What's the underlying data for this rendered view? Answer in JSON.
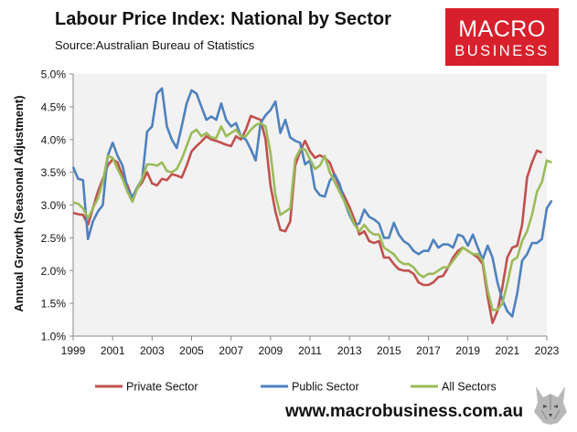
{
  "header": {
    "title": "Labour Price Index: National by Sector",
    "source": "Source:Australian Bureau of Statistics"
  },
  "logo": {
    "line1": "MACRO",
    "line2": "BUSINESS",
    "color": "#d7202b"
  },
  "footer": {
    "website": "www.macrobusiness.com.au",
    "mascot": "wolf-icon"
  },
  "chart_data": {
    "type": "line",
    "title": "Labour Price Index: National by Sector",
    "ylabel": "Annual Growth (Seasonal Adjustment)",
    "xlabel": "",
    "xlim": [
      1999,
      2023
    ],
    "ylim": [
      1.0,
      5.0
    ],
    "grid": false,
    "legend_position": "bottom",
    "plot_background": "#f2f2f2",
    "x_ticks": [
      "1999",
      "2001",
      "2003",
      "2005",
      "2007",
      "2009",
      "2011",
      "2013",
      "2015",
      "2017",
      "2019",
      "2021",
      "2023"
    ],
    "y_ticks": [
      "1.0%",
      "1.5%",
      "2.0%",
      "2.5%",
      "3.0%",
      "3.5%",
      "4.0%",
      "4.5%",
      "5.0%"
    ],
    "series": [
      {
        "name": "Private Sector",
        "color": "#c0504d",
        "points": [
          [
            1999.0,
            2.88
          ],
          [
            1999.25,
            2.86
          ],
          [
            1999.5,
            2.85
          ],
          [
            1999.75,
            2.7
          ],
          [
            2000.0,
            2.95
          ],
          [
            2000.25,
            3.2
          ],
          [
            2000.5,
            3.4
          ],
          [
            2000.75,
            3.6
          ],
          [
            2001.0,
            3.7
          ],
          [
            2001.25,
            3.65
          ],
          [
            2001.5,
            3.45
          ],
          [
            2001.75,
            3.3
          ],
          [
            2002.0,
            3.1
          ],
          [
            2002.25,
            3.25
          ],
          [
            2002.5,
            3.35
          ],
          [
            2002.75,
            3.5
          ],
          [
            2003.0,
            3.33
          ],
          [
            2003.25,
            3.3
          ],
          [
            2003.5,
            3.4
          ],
          [
            2003.75,
            3.38
          ],
          [
            2004.0,
            3.47
          ],
          [
            2004.25,
            3.45
          ],
          [
            2004.5,
            3.42
          ],
          [
            2004.75,
            3.6
          ],
          [
            2005.0,
            3.82
          ],
          [
            2005.25,
            3.9
          ],
          [
            2005.5,
            3.97
          ],
          [
            2005.75,
            4.05
          ],
          [
            2006.0,
            4.0
          ],
          [
            2006.25,
            3.98
          ],
          [
            2006.5,
            3.95
          ],
          [
            2006.75,
            3.92
          ],
          [
            2007.0,
            3.9
          ],
          [
            2007.25,
            4.05
          ],
          [
            2007.5,
            4.0
          ],
          [
            2007.75,
            4.15
          ],
          [
            2008.0,
            4.36
          ],
          [
            2008.25,
            4.33
          ],
          [
            2008.5,
            4.3
          ],
          [
            2008.75,
            4.0
          ],
          [
            2009.0,
            3.3
          ],
          [
            2009.25,
            2.9
          ],
          [
            2009.5,
            2.62
          ],
          [
            2009.75,
            2.6
          ],
          [
            2010.0,
            2.75
          ],
          [
            2010.25,
            3.6
          ],
          [
            2010.5,
            3.82
          ],
          [
            2010.75,
            3.98
          ],
          [
            2011.0,
            3.82
          ],
          [
            2011.25,
            3.72
          ],
          [
            2011.5,
            3.76
          ],
          [
            2011.75,
            3.72
          ],
          [
            2012.0,
            3.65
          ],
          [
            2012.25,
            3.45
          ],
          [
            2012.5,
            3.28
          ],
          [
            2012.75,
            3.13
          ],
          [
            2013.0,
            2.97
          ],
          [
            2013.25,
            2.78
          ],
          [
            2013.5,
            2.55
          ],
          [
            2013.75,
            2.6
          ],
          [
            2014.0,
            2.45
          ],
          [
            2014.25,
            2.42
          ],
          [
            2014.5,
            2.45
          ],
          [
            2014.75,
            2.2
          ],
          [
            2015.0,
            2.2
          ],
          [
            2015.25,
            2.1
          ],
          [
            2015.5,
            2.02
          ],
          [
            2015.75,
            2.0
          ],
          [
            2016.0,
            2.0
          ],
          [
            2016.25,
            1.95
          ],
          [
            2016.5,
            1.82
          ],
          [
            2016.75,
            1.78
          ],
          [
            2017.0,
            1.78
          ],
          [
            2017.25,
            1.82
          ],
          [
            2017.5,
            1.9
          ],
          [
            2017.75,
            1.92
          ],
          [
            2018.0,
            2.05
          ],
          [
            2018.25,
            2.2
          ],
          [
            2018.5,
            2.3
          ],
          [
            2018.75,
            2.35
          ],
          [
            2019.0,
            2.3
          ],
          [
            2019.25,
            2.25
          ],
          [
            2019.5,
            2.2
          ],
          [
            2019.75,
            2.1
          ],
          [
            2020.0,
            1.6
          ],
          [
            2020.25,
            1.2
          ],
          [
            2020.5,
            1.38
          ],
          [
            2020.75,
            1.75
          ],
          [
            2021.0,
            2.2
          ],
          [
            2021.25,
            2.35
          ],
          [
            2021.5,
            2.38
          ],
          [
            2021.75,
            2.7
          ],
          [
            2022.0,
            3.42
          ],
          [
            2022.25,
            3.65
          ],
          [
            2022.5,
            3.83
          ],
          [
            2022.75,
            3.8
          ]
        ]
      },
      {
        "name": "Public Sector",
        "color": "#4f81bd",
        "points": [
          [
            1999.0,
            3.58
          ],
          [
            1999.25,
            3.4
          ],
          [
            1999.5,
            3.38
          ],
          [
            1999.75,
            2.48
          ],
          [
            2000.0,
            2.75
          ],
          [
            2000.25,
            2.9
          ],
          [
            2000.5,
            3.0
          ],
          [
            2000.75,
            3.75
          ],
          [
            2001.0,
            3.95
          ],
          [
            2001.25,
            3.75
          ],
          [
            2001.5,
            3.6
          ],
          [
            2001.75,
            3.25
          ],
          [
            2002.0,
            3.12
          ],
          [
            2002.25,
            3.27
          ],
          [
            2002.5,
            3.4
          ],
          [
            2002.75,
            4.12
          ],
          [
            2003.0,
            4.2
          ],
          [
            2003.25,
            4.7
          ],
          [
            2003.5,
            4.78
          ],
          [
            2003.75,
            4.2
          ],
          [
            2004.0,
            4.0
          ],
          [
            2004.25,
            3.87
          ],
          [
            2004.5,
            4.2
          ],
          [
            2004.75,
            4.55
          ],
          [
            2005.0,
            4.75
          ],
          [
            2005.25,
            4.7
          ],
          [
            2005.5,
            4.5
          ],
          [
            2005.75,
            4.3
          ],
          [
            2006.0,
            4.35
          ],
          [
            2006.25,
            4.3
          ],
          [
            2006.5,
            4.55
          ],
          [
            2006.75,
            4.3
          ],
          [
            2007.0,
            4.2
          ],
          [
            2007.25,
            4.25
          ],
          [
            2007.5,
            4.05
          ],
          [
            2007.75,
            4.0
          ],
          [
            2008.0,
            3.85
          ],
          [
            2008.25,
            3.68
          ],
          [
            2008.5,
            4.25
          ],
          [
            2008.75,
            4.37
          ],
          [
            2009.0,
            4.45
          ],
          [
            2009.25,
            4.58
          ],
          [
            2009.5,
            4.1
          ],
          [
            2009.75,
            4.3
          ],
          [
            2010.0,
            4.03
          ],
          [
            2010.25,
            3.98
          ],
          [
            2010.5,
            3.95
          ],
          [
            2010.75,
            3.62
          ],
          [
            2011.0,
            3.68
          ],
          [
            2011.25,
            3.25
          ],
          [
            2011.5,
            3.15
          ],
          [
            2011.75,
            3.13
          ],
          [
            2012.0,
            3.37
          ],
          [
            2012.25,
            3.47
          ],
          [
            2012.5,
            3.32
          ],
          [
            2012.75,
            3.05
          ],
          [
            2013.0,
            2.85
          ],
          [
            2013.25,
            2.7
          ],
          [
            2013.5,
            2.72
          ],
          [
            2013.75,
            2.93
          ],
          [
            2014.0,
            2.82
          ],
          [
            2014.25,
            2.78
          ],
          [
            2014.5,
            2.72
          ],
          [
            2014.75,
            2.5
          ],
          [
            2015.0,
            2.5
          ],
          [
            2015.25,
            2.73
          ],
          [
            2015.5,
            2.55
          ],
          [
            2015.75,
            2.45
          ],
          [
            2016.0,
            2.4
          ],
          [
            2016.25,
            2.3
          ],
          [
            2016.5,
            2.25
          ],
          [
            2016.75,
            2.3
          ],
          [
            2017.0,
            2.3
          ],
          [
            2017.25,
            2.47
          ],
          [
            2017.5,
            2.35
          ],
          [
            2017.75,
            2.4
          ],
          [
            2018.0,
            2.4
          ],
          [
            2018.25,
            2.35
          ],
          [
            2018.5,
            2.55
          ],
          [
            2018.75,
            2.52
          ],
          [
            2019.0,
            2.38
          ],
          [
            2019.25,
            2.55
          ],
          [
            2019.5,
            2.35
          ],
          [
            2019.75,
            2.17
          ],
          [
            2020.0,
            2.38
          ],
          [
            2020.25,
            2.2
          ],
          [
            2020.5,
            1.82
          ],
          [
            2020.75,
            1.55
          ],
          [
            2021.0,
            1.38
          ],
          [
            2021.25,
            1.3
          ],
          [
            2021.5,
            1.65
          ],
          [
            2021.75,
            2.15
          ],
          [
            2022.0,
            2.25
          ],
          [
            2022.25,
            2.42
          ],
          [
            2022.5,
            2.42
          ],
          [
            2022.75,
            2.48
          ],
          [
            2023.0,
            2.95
          ],
          [
            2023.25,
            3.07
          ]
        ]
      },
      {
        "name": "All Sectors",
        "color": "#9bbb59",
        "points": [
          [
            1999.0,
            3.04
          ],
          [
            1999.25,
            3.02
          ],
          [
            1999.5,
            2.95
          ],
          [
            1999.75,
            2.8
          ],
          [
            2000.0,
            2.95
          ],
          [
            2000.25,
            3.1
          ],
          [
            2000.5,
            3.35
          ],
          [
            2000.75,
            3.75
          ],
          [
            2001.0,
            3.72
          ],
          [
            2001.25,
            3.55
          ],
          [
            2001.5,
            3.4
          ],
          [
            2001.75,
            3.2
          ],
          [
            2002.0,
            3.05
          ],
          [
            2002.25,
            3.25
          ],
          [
            2002.5,
            3.4
          ],
          [
            2002.75,
            3.62
          ],
          [
            2003.0,
            3.62
          ],
          [
            2003.25,
            3.6
          ],
          [
            2003.5,
            3.65
          ],
          [
            2003.75,
            3.52
          ],
          [
            2004.0,
            3.5
          ],
          [
            2004.25,
            3.55
          ],
          [
            2004.5,
            3.7
          ],
          [
            2004.75,
            3.9
          ],
          [
            2005.0,
            4.1
          ],
          [
            2005.25,
            4.15
          ],
          [
            2005.5,
            4.05
          ],
          [
            2005.75,
            4.1
          ],
          [
            2006.0,
            4.03
          ],
          [
            2006.25,
            4.02
          ],
          [
            2006.5,
            4.2
          ],
          [
            2006.75,
            4.05
          ],
          [
            2007.0,
            4.1
          ],
          [
            2007.25,
            4.15
          ],
          [
            2007.5,
            4.05
          ],
          [
            2007.75,
            4.05
          ],
          [
            2008.0,
            4.15
          ],
          [
            2008.25,
            4.22
          ],
          [
            2008.5,
            4.25
          ],
          [
            2008.75,
            4.2
          ],
          [
            2009.0,
            3.8
          ],
          [
            2009.25,
            3.15
          ],
          [
            2009.5,
            2.85
          ],
          [
            2009.75,
            2.9
          ],
          [
            2010.0,
            2.95
          ],
          [
            2010.25,
            3.7
          ],
          [
            2010.5,
            3.85
          ],
          [
            2010.75,
            3.85
          ],
          [
            2011.0,
            3.7
          ],
          [
            2011.25,
            3.55
          ],
          [
            2011.5,
            3.6
          ],
          [
            2011.75,
            3.75
          ],
          [
            2012.0,
            3.5
          ],
          [
            2012.25,
            3.35
          ],
          [
            2012.5,
            3.2
          ],
          [
            2012.75,
            3.05
          ],
          [
            2013.0,
            2.9
          ],
          [
            2013.25,
            2.7
          ],
          [
            2013.5,
            2.6
          ],
          [
            2013.75,
            2.7
          ],
          [
            2014.0,
            2.6
          ],
          [
            2014.25,
            2.55
          ],
          [
            2014.5,
            2.55
          ],
          [
            2014.75,
            2.35
          ],
          [
            2015.0,
            2.3
          ],
          [
            2015.25,
            2.25
          ],
          [
            2015.5,
            2.15
          ],
          [
            2015.75,
            2.1
          ],
          [
            2016.0,
            2.1
          ],
          [
            2016.25,
            2.05
          ],
          [
            2016.5,
            1.95
          ],
          [
            2016.75,
            1.9
          ],
          [
            2017.0,
            1.95
          ],
          [
            2017.25,
            1.95
          ],
          [
            2017.5,
            2.0
          ],
          [
            2017.75,
            2.05
          ],
          [
            2018.0,
            2.05
          ],
          [
            2018.25,
            2.15
          ],
          [
            2018.5,
            2.25
          ],
          [
            2018.75,
            2.35
          ],
          [
            2019.0,
            2.3
          ],
          [
            2019.25,
            2.25
          ],
          [
            2019.5,
            2.25
          ],
          [
            2019.75,
            2.15
          ],
          [
            2020.0,
            1.7
          ],
          [
            2020.25,
            1.4
          ],
          [
            2020.5,
            1.4
          ],
          [
            2020.75,
            1.5
          ],
          [
            2021.0,
            1.8
          ],
          [
            2021.25,
            2.15
          ],
          [
            2021.5,
            2.2
          ],
          [
            2021.75,
            2.45
          ],
          [
            2022.0,
            2.6
          ],
          [
            2022.25,
            2.85
          ],
          [
            2022.5,
            3.2
          ],
          [
            2022.75,
            3.35
          ],
          [
            2023.0,
            3.68
          ],
          [
            2023.25,
            3.65
          ]
        ]
      }
    ]
  }
}
